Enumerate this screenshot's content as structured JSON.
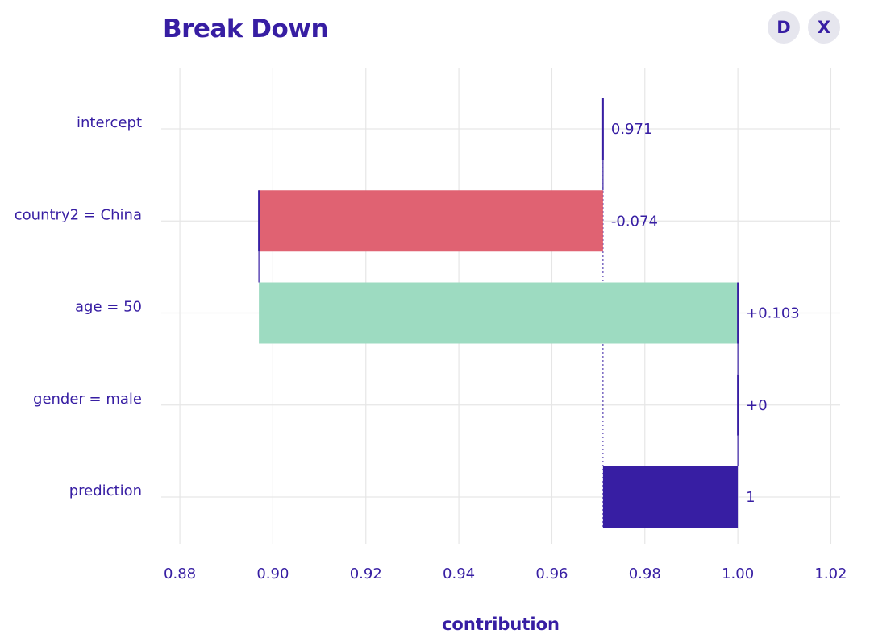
{
  "header": {
    "title": "Break Down",
    "buttons": [
      {
        "label": "D"
      },
      {
        "label": "X"
      }
    ]
  },
  "colors": {
    "negative": "#e06272",
    "positive": "#9ddbc1",
    "prediction": "#371ea3",
    "text": "#371ea3",
    "grid": "#e6e6e6"
  },
  "chart_data": {
    "type": "bar",
    "subtype": "waterfall",
    "title": "Break Down",
    "xlabel": "contribution",
    "ylabel": "",
    "xlim": [
      0.876,
      1.022
    ],
    "x_ticks": [
      0.88,
      0.9,
      0.92,
      0.94,
      0.96,
      0.98,
      1.0,
      1.02
    ],
    "x_tick_labels": [
      "0.88",
      "0.90",
      "0.92",
      "0.94",
      "0.96",
      "0.98",
      "1.00",
      "1.02"
    ],
    "grid": true,
    "categories": [
      "intercept",
      "country2 = China",
      "age = 50",
      "gender = male",
      "prediction"
    ],
    "value_labels": [
      "0.971",
      "-0.074",
      "+0.103",
      "+0",
      "1"
    ],
    "bars": [
      {
        "start": 0.971,
        "end": 0.971,
        "kind": "intercept"
      },
      {
        "start": 0.971,
        "end": 0.897,
        "kind": "negative"
      },
      {
        "start": 0.897,
        "end": 1.0,
        "kind": "positive"
      },
      {
        "start": 1.0,
        "end": 1.0,
        "kind": "zero"
      },
      {
        "start": 0.971,
        "end": 1.0,
        "kind": "prediction"
      }
    ],
    "baseline": 0.971
  }
}
